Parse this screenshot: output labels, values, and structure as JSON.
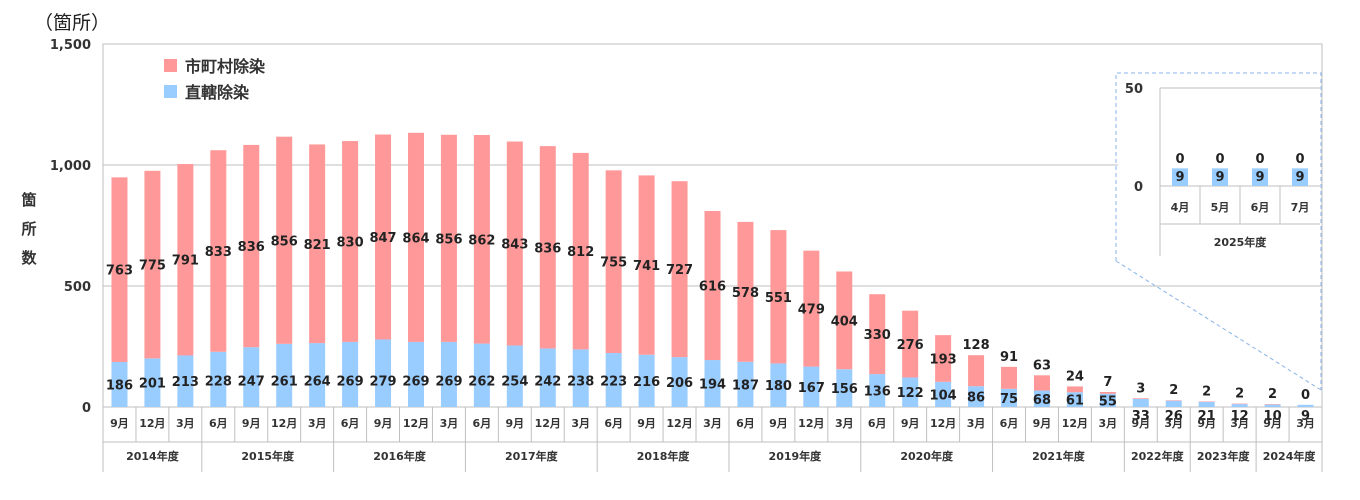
{
  "unit_label": "（箇所）",
  "ylabel_chars": [
    "箇",
    "所",
    "数"
  ],
  "colors": {
    "municipal": "#ff9999",
    "direct": "#99ccff",
    "inset_border": "#88b4e8",
    "grid": "#bfbfbf"
  },
  "chart_data": {
    "type": "bar",
    "stacked": true,
    "ylim": [
      0,
      1500
    ],
    "yticks": [
      "0",
      "500",
      "1,000",
      "1,500"
    ],
    "ytick_values": [
      0,
      500,
      1000,
      1500
    ],
    "grid": true,
    "legend": "top-left",
    "categories": [
      "9月",
      "12月",
      "3月",
      "6月",
      "9月",
      "12月",
      "3月",
      "6月",
      "9月",
      "12月",
      "3月",
      "6月",
      "9月",
      "12月",
      "3月",
      "6月",
      "9月",
      "12月",
      "3月",
      "6月",
      "9月",
      "12月",
      "3月",
      "6月",
      "9月",
      "12月",
      "3月",
      "6月",
      "9月",
      "12月",
      "3月",
      "9月",
      "3月",
      "9月",
      "3月",
      "9月",
      "3月"
    ],
    "year_groups": [
      {
        "label": "2014年度",
        "count": 3
      },
      {
        "label": "2015年度",
        "count": 4
      },
      {
        "label": "2016年度",
        "count": 4
      },
      {
        "label": "2017年度",
        "count": 4
      },
      {
        "label": "2018年度",
        "count": 4
      },
      {
        "label": "2019年度",
        "count": 4
      },
      {
        "label": "2020年度",
        "count": 4
      },
      {
        "label": "2021年度",
        "count": 4
      },
      {
        "label": "2022年度",
        "count": 2
      },
      {
        "label": "2023年度",
        "count": 2
      },
      {
        "label": "2024年度",
        "count": 2
      }
    ],
    "series": [
      {
        "name": "直轄除染",
        "values": [
          186,
          201,
          213,
          228,
          247,
          261,
          264,
          269,
          279,
          269,
          269,
          262,
          254,
          242,
          238,
          223,
          216,
          206,
          194,
          187,
          180,
          167,
          156,
          136,
          122,
          104,
          86,
          75,
          68,
          61,
          55,
          33,
          26,
          21,
          12,
          10,
          9
        ]
      },
      {
        "name": "市町村除染",
        "values": [
          763,
          775,
          791,
          833,
          836,
          856,
          821,
          830,
          847,
          864,
          856,
          862,
          843,
          836,
          812,
          755,
          741,
          727,
          616,
          578,
          551,
          479,
          404,
          330,
          276,
          193,
          128,
          91,
          63,
          24,
          7,
          3,
          2,
          2,
          2,
          2,
          0
        ]
      }
    ],
    "inset": {
      "ylim": [
        0,
        50
      ],
      "yticks": [
        "0",
        "50"
      ],
      "ytick_values": [
        0,
        50
      ],
      "categories": [
        "4月",
        "5月",
        "6月",
        "7月"
      ],
      "year_group": "2025年度",
      "series": [
        {
          "name": "直轄除染",
          "values": [
            9,
            9,
            9,
            9
          ]
        },
        {
          "name": "市町村除染",
          "values": [
            0,
            0,
            0,
            0
          ]
        }
      ]
    }
  }
}
